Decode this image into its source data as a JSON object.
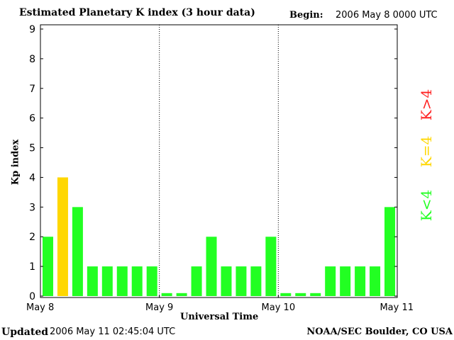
{
  "header": {
    "title": "Estimated Planetary K index (3 hour data)",
    "begin_label": "Begin:",
    "begin_value": "2006 May 8 0000 UTC"
  },
  "footer": {
    "updated_label": "Updated",
    "updated_value": "2006 May 11 02:45:04 UTC",
    "credit": "NOAA/SEC Boulder, CO USA"
  },
  "chart_data": {
    "type": "bar",
    "title": "Estimated Planetary K index (3 hour data)",
    "xlabel": "Universal Time",
    "ylabel": "Kp index",
    "ylim": [
      0,
      9
    ],
    "y_ticks": [
      "0",
      "1",
      "2",
      "3",
      "4",
      "5",
      "6",
      "7",
      "8",
      "9"
    ],
    "x_ticks": [
      "May 8",
      "May 9",
      "May 10",
      "May 11"
    ],
    "day_separators": [
      "May 9",
      "May 10"
    ],
    "grid": false,
    "legend_position": "right",
    "values": [
      2,
      4,
      3,
      1,
      1,
      1,
      1,
      1,
      0.1,
      0.1,
      1,
      2,
      1,
      1,
      1,
      2,
      0.1,
      0.1,
      0.1,
      1,
      1,
      1,
      1,
      3
    ],
    "colors": {
      "below": "#22ff22",
      "equal": "#ffd700",
      "above": "#ff2222"
    },
    "legend": [
      {
        "label": "K<4",
        "color": "#22ff22"
      },
      {
        "label": "K=4",
        "color": "#ffd700"
      },
      {
        "label": "K>4",
        "color": "#ff2222"
      }
    ]
  }
}
